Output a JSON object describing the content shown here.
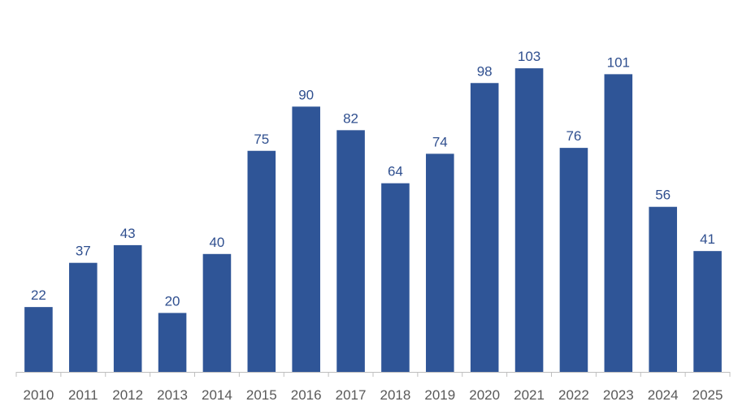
{
  "chart_data": {
    "type": "bar",
    "categories": [
      "2010",
      "2011",
      "2012",
      "2013",
      "2014",
      "2015",
      "2016",
      "2017",
      "2018",
      "2019",
      "2020",
      "2021",
      "2022",
      "2023",
      "2024",
      "2025"
    ],
    "values": [
      22,
      37,
      43,
      20,
      40,
      75,
      90,
      82,
      64,
      74,
      98,
      103,
      76,
      101,
      56,
      41
    ],
    "data_labels": [
      "22",
      "37",
      "43",
      "20",
      "40",
      "75",
      "90",
      "82",
      "64",
      "74",
      "98",
      "103",
      "76",
      "101",
      "56",
      "41"
    ],
    "title": "",
    "xlabel": "",
    "ylabel": "",
    "ylim": [
      0,
      120
    ],
    "grid": false,
    "legend": "none",
    "colors": {
      "bar": "#2f5597",
      "label": "#2f4f8f",
      "axis": "#bfbfbf",
      "tick_text": "#595959"
    }
  }
}
